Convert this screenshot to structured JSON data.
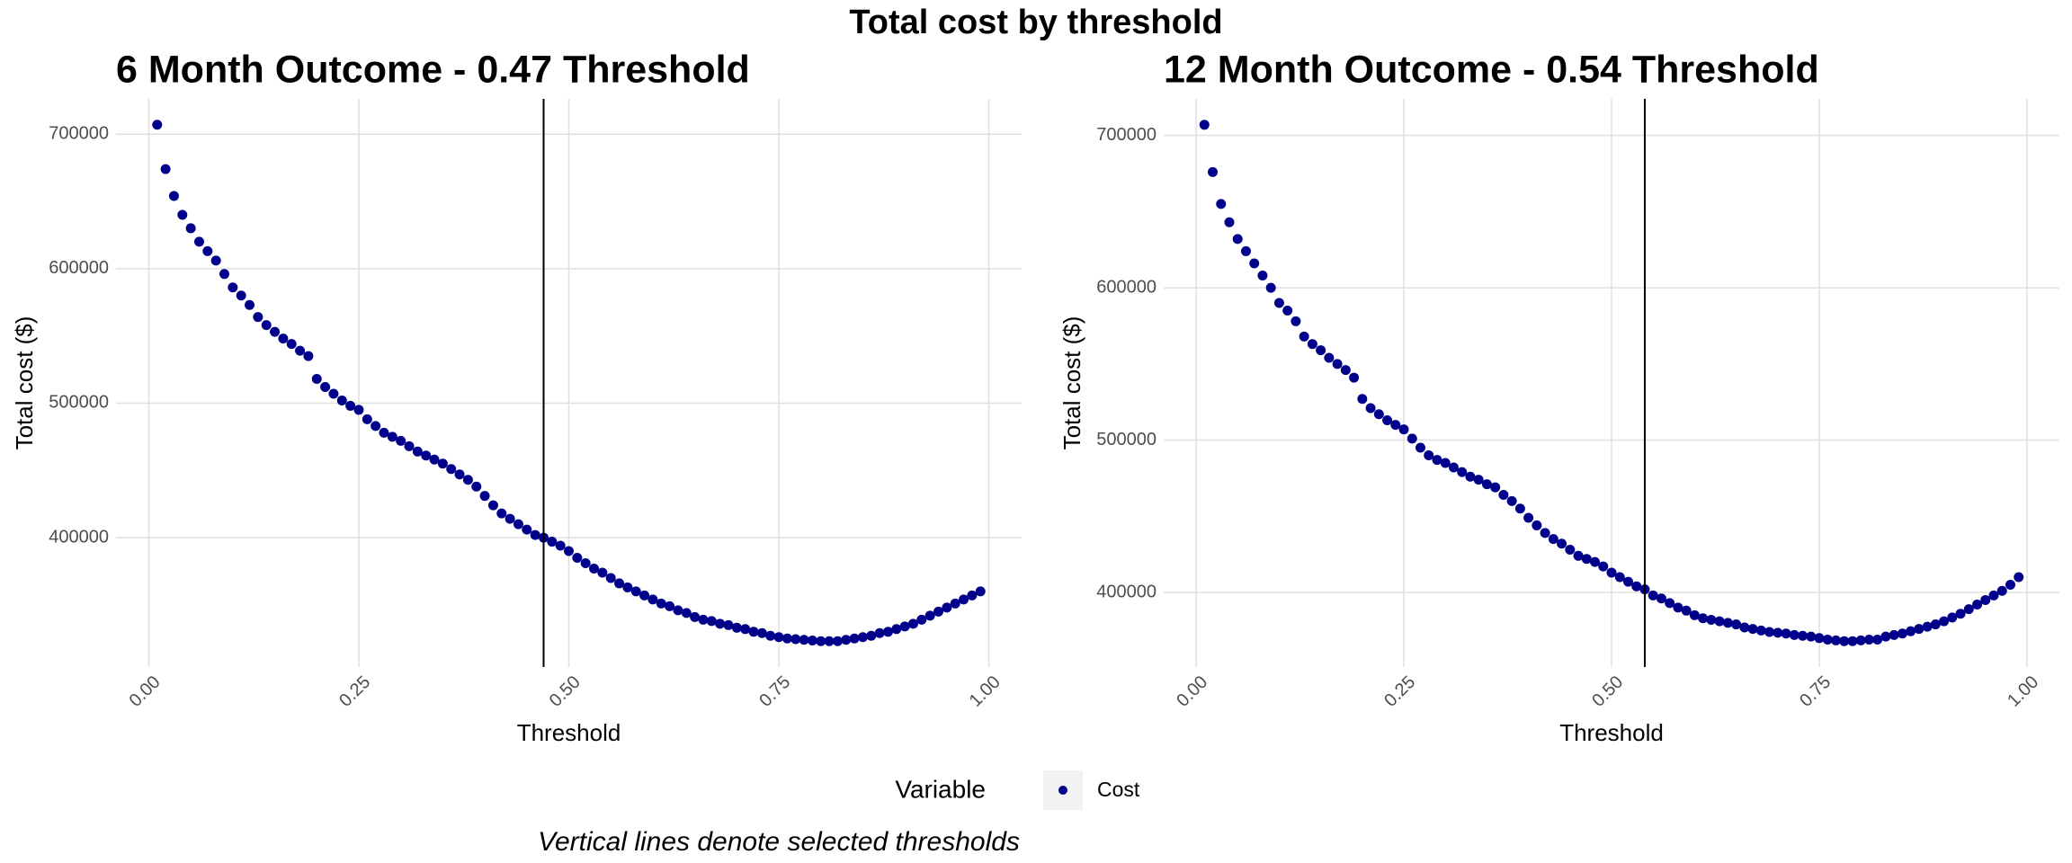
{
  "title": "Total cost by threshold",
  "caption": "Vertical lines denote selected thresholds",
  "legend_title": "Variable",
  "chart_data": [
    {
      "type": "scatter",
      "title": "6 Month Outcome - 0.47 Threshold",
      "x_label": "Threshold",
      "y_label": "Total cost ($)",
      "x": [
        0.01,
        0.02,
        0.03,
        0.04,
        0.05,
        0.06,
        0.07,
        0.08,
        0.09,
        0.1,
        0.11,
        0.12,
        0.13,
        0.14,
        0.15,
        0.16,
        0.17,
        0.18,
        0.19,
        0.2,
        0.21,
        0.22,
        0.23,
        0.24,
        0.25,
        0.26,
        0.27,
        0.28,
        0.29,
        0.3,
        0.31,
        0.32,
        0.33,
        0.34,
        0.35,
        0.36,
        0.37,
        0.38,
        0.39,
        0.4,
        0.41,
        0.42,
        0.43,
        0.44,
        0.45,
        0.46,
        0.47,
        0.48,
        0.49,
        0.5,
        0.51,
        0.52,
        0.53,
        0.54,
        0.55,
        0.56,
        0.57,
        0.58,
        0.59,
        0.6,
        0.61,
        0.62,
        0.63,
        0.64,
        0.65,
        0.66,
        0.67,
        0.68,
        0.69,
        0.7,
        0.71,
        0.72,
        0.73,
        0.74,
        0.75,
        0.76,
        0.77,
        0.78,
        0.79,
        0.8,
        0.81,
        0.82,
        0.83,
        0.84,
        0.85,
        0.86,
        0.87,
        0.88,
        0.89,
        0.9,
        0.91,
        0.92,
        0.93,
        0.94,
        0.95,
        0.96,
        0.97,
        0.98,
        0.99
      ],
      "series": [
        {
          "name": "Cost",
          "color": "#00008b",
          "values": [
            707000,
            674000,
            654000,
            640000,
            630000,
            620000,
            613000,
            606000,
            596000,
            586000,
            580000,
            573000,
            564000,
            558000,
            553000,
            548000,
            544000,
            539000,
            535000,
            518000,
            512000,
            507000,
            502000,
            498000,
            495000,
            488000,
            483000,
            478000,
            475000,
            472000,
            468000,
            464000,
            461000,
            458000,
            455000,
            451000,
            447000,
            443000,
            438000,
            431000,
            424000,
            418000,
            414000,
            410000,
            406000,
            402000,
            400000,
            397000,
            394000,
            390000,
            385000,
            381000,
            377000,
            374000,
            370000,
            366000,
            363000,
            360000,
            357000,
            354000,
            351000,
            349000,
            346000,
            344000,
            341000,
            339000,
            338000,
            336000,
            335000,
            333000,
            332000,
            330000,
            329000,
            327000,
            326000,
            325000,
            324500,
            324000,
            323500,
            323000,
            323000,
            323000,
            324000,
            325000,
            326000,
            327000,
            329000,
            330000,
            332000,
            334000,
            336000,
            339000,
            342000,
            345000,
            348000,
            351000,
            354000,
            357000,
            360000
          ]
        }
      ],
      "vline": 0.47,
      "xlim": [
        -0.039,
        1.039
      ],
      "xticks": [
        {
          "value": 0,
          "label": "0.00"
        },
        {
          "value": 0.25,
          "label": "0.25"
        },
        {
          "value": 0.5,
          "label": "0.50"
        },
        {
          "value": 0.75,
          "label": "0.75"
        },
        {
          "value": 1,
          "label": "1.00"
        }
      ],
      "ylim": [
        303800,
        726200
      ],
      "yticks": [
        400000,
        500000,
        600000,
        700000
      ],
      "grid": true
    },
    {
      "type": "scatter",
      "title": "12 Month Outcome - 0.54 Threshold",
      "x_label": "Threshold",
      "y_label": "Total cost ($)",
      "x": [
        0.01,
        0.02,
        0.03,
        0.04,
        0.05,
        0.06,
        0.07,
        0.08,
        0.09,
        0.1,
        0.11,
        0.12,
        0.13,
        0.14,
        0.15,
        0.16,
        0.17,
        0.18,
        0.19,
        0.2,
        0.21,
        0.22,
        0.23,
        0.24,
        0.25,
        0.26,
        0.27,
        0.28,
        0.29,
        0.3,
        0.31,
        0.32,
        0.33,
        0.34,
        0.35,
        0.36,
        0.37,
        0.38,
        0.39,
        0.4,
        0.41,
        0.42,
        0.43,
        0.44,
        0.45,
        0.46,
        0.47,
        0.48,
        0.49,
        0.5,
        0.51,
        0.52,
        0.53,
        0.54,
        0.55,
        0.56,
        0.57,
        0.58,
        0.59,
        0.6,
        0.61,
        0.62,
        0.63,
        0.64,
        0.65,
        0.66,
        0.67,
        0.68,
        0.69,
        0.7,
        0.71,
        0.72,
        0.73,
        0.74,
        0.75,
        0.76,
        0.77,
        0.78,
        0.79,
        0.8,
        0.81,
        0.82,
        0.83,
        0.84,
        0.85,
        0.86,
        0.87,
        0.88,
        0.89,
        0.9,
        0.91,
        0.92,
        0.93,
        0.94,
        0.95,
        0.96,
        0.97,
        0.98,
        0.99
      ],
      "series": [
        {
          "name": "Cost",
          "color": "#00008b",
          "values": [
            707000,
            676000,
            655000,
            643000,
            632000,
            624000,
            616000,
            608000,
            600000,
            590000,
            585000,
            578000,
            568000,
            563000,
            559000,
            554000,
            550000,
            546000,
            541000,
            527000,
            521000,
            517000,
            513000,
            510000,
            507000,
            501000,
            495000,
            490000,
            487000,
            485000,
            482000,
            479000,
            476000,
            474000,
            471000,
            469000,
            464000,
            460000,
            455000,
            449000,
            444000,
            439000,
            435000,
            432000,
            428000,
            424000,
            422000,
            420000,
            417000,
            413000,
            410000,
            407000,
            404000,
            402000,
            398000,
            396000,
            393000,
            390000,
            388000,
            385000,
            383000,
            382000,
            381000,
            380000,
            379000,
            377000,
            376000,
            375000,
            374000,
            373500,
            373000,
            372000,
            371500,
            371000,
            370000,
            369000,
            368500,
            368000,
            368000,
            368500,
            369000,
            369000,
            371000,
            372000,
            373000,
            374500,
            376000,
            377500,
            379000,
            381000,
            383500,
            386000,
            389000,
            392000,
            395000,
            398000,
            401000,
            405000,
            410000
          ]
        }
      ],
      "vline": 0.54,
      "xlim": [
        -0.039,
        1.039
      ],
      "xticks": [
        {
          "value": 0,
          "label": "0.00"
        },
        {
          "value": 0.25,
          "label": "0.25"
        },
        {
          "value": 0.5,
          "label": "0.50"
        },
        {
          "value": 0.75,
          "label": "0.75"
        },
        {
          "value": 1,
          "label": "1.00"
        }
      ],
      "ylim": [
        351000,
        724000
      ],
      "yticks": [
        400000,
        500000,
        600000,
        700000
      ],
      "grid": true
    }
  ]
}
